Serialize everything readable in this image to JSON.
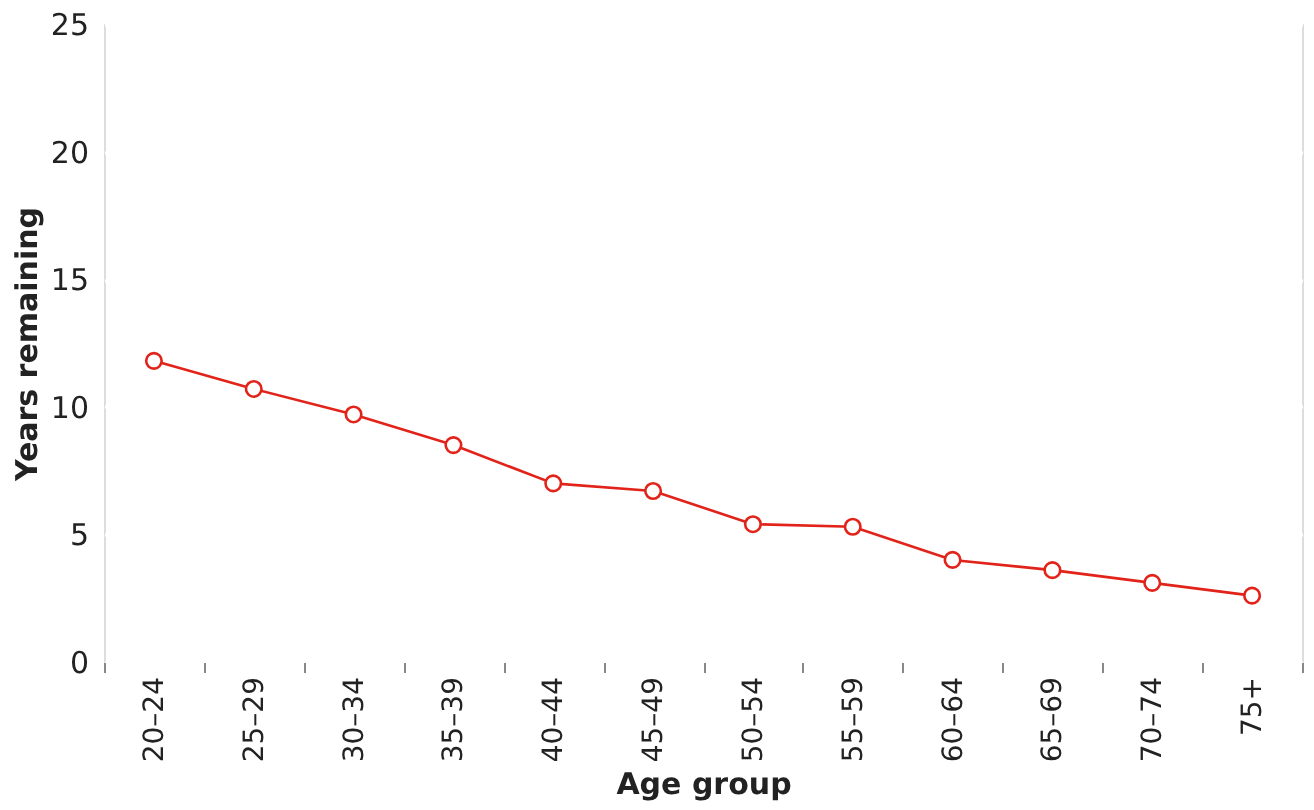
{
  "chart_data": {
    "type": "line",
    "xlabel": "Age group",
    "ylabel": "Years remaining",
    "categories": [
      "20–24",
      "25–29",
      "30–34",
      "35–39",
      "40–44",
      "45–49",
      "50–54",
      "55–59",
      "60–64",
      "65–69",
      "70–74",
      "75+"
    ],
    "series": [
      {
        "color": "#e2231a",
        "values": [
          11.8,
          10.7,
          9.7,
          8.5,
          7.0,
          6.7,
          5.4,
          5.3,
          4.0,
          3.6,
          3.1,
          2.6
        ]
      }
    ],
    "ylim": [
      0,
      25
    ],
    "yticks": [
      0,
      5,
      10,
      15,
      20,
      25
    ],
    "grid": "y",
    "marker": "circle",
    "line_style": "solid"
  }
}
